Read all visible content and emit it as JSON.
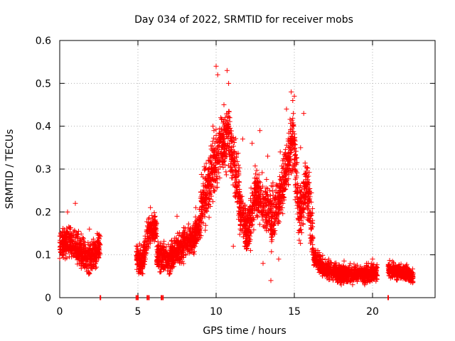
{
  "chart_data": {
    "type": "scatter",
    "title": "Day 034 of 2022, SRMTID for receiver mobs",
    "xlabel": "GPS time / hours",
    "ylabel": "SRMTID / TECUs",
    "xlim": [
      0,
      24
    ],
    "ylim": [
      0,
      0.6
    ],
    "x_ticks": [
      0,
      5,
      10,
      15,
      20
    ],
    "y_ticks": [
      0,
      0.1,
      0.2,
      0.3,
      0.4,
      0.5,
      0.6
    ],
    "x_tick_labels": [
      "0",
      "5",
      "10",
      "15",
      "20"
    ],
    "y_tick_labels": [
      "0",
      "0.1",
      "0.2",
      "0.3",
      "0.4",
      "0.5",
      "0.6"
    ],
    "grid": true,
    "marker": "+",
    "color": "#ff0000",
    "series": [
      {
        "name": "SRMTID",
        "segments": [
          {
            "x_start": 0.0,
            "x_end": 2.6,
            "profile": [
              [
                0.0,
                0.12
              ],
              [
                0.5,
                0.13
              ],
              [
                1.0,
                0.12
              ],
              [
                1.5,
                0.1
              ],
              [
                2.0,
                0.09
              ],
              [
                2.6,
                0.12
              ]
            ],
            "spread": 0.05
          },
          {
            "x_start": 4.9,
            "x_end": 6.2,
            "profile": [
              [
                4.9,
                0.1
              ],
              [
                5.3,
                0.08
              ],
              [
                5.6,
                0.14
              ],
              [
                6.0,
                0.17
              ],
              [
                6.2,
                0.16
              ]
            ],
            "spread": 0.05
          },
          {
            "x_start": 6.2,
            "x_end": 9.0,
            "profile": [
              [
                6.2,
                0.1
              ],
              [
                7.0,
                0.09
              ],
              [
                7.8,
                0.12
              ],
              [
                8.5,
                0.14
              ],
              [
                9.0,
                0.17
              ]
            ],
            "spread": 0.05
          },
          {
            "x_start": 9.0,
            "x_end": 11.5,
            "profile": [
              [
                9.0,
                0.2
              ],
              [
                9.5,
                0.26
              ],
              [
                10.0,
                0.32
              ],
              [
                10.4,
                0.36
              ],
              [
                10.8,
                0.38
              ],
              [
                11.2,
                0.3
              ],
              [
                11.5,
                0.24
              ]
            ],
            "spread": 0.1
          },
          {
            "x_start": 11.5,
            "x_end": 13.5,
            "profile": [
              [
                11.5,
                0.2
              ],
              [
                12.0,
                0.15
              ],
              [
                12.5,
                0.24
              ],
              [
                13.0,
                0.22
              ],
              [
                13.5,
                0.2
              ]
            ],
            "spread": 0.08
          },
          {
            "x_start": 13.5,
            "x_end": 16.2,
            "profile": [
              [
                13.5,
                0.18
              ],
              [
                14.0,
                0.22
              ],
              [
                14.5,
                0.3
              ],
              [
                14.9,
                0.38
              ],
              [
                15.3,
                0.2
              ],
              [
                15.8,
                0.26
              ],
              [
                16.2,
                0.14
              ]
            ],
            "spread": 0.09
          },
          {
            "x_start": 16.2,
            "x_end": 20.3,
            "profile": [
              [
                16.2,
                0.1
              ],
              [
                16.8,
                0.07
              ],
              [
                17.5,
                0.06
              ],
              [
                18.5,
                0.055
              ],
              [
                19.5,
                0.055
              ],
              [
                20.3,
                0.06
              ]
            ],
            "spread": 0.03
          },
          {
            "x_start": 21.0,
            "x_end": 22.6,
            "profile": [
              [
                21.0,
                0.065
              ],
              [
                21.8,
                0.06
              ],
              [
                22.6,
                0.05
              ]
            ],
            "spread": 0.025
          }
        ],
        "peaks": [
          [
            10.0,
            0.54
          ],
          [
            10.1,
            0.52
          ],
          [
            10.7,
            0.53
          ],
          [
            10.8,
            0.5
          ],
          [
            10.5,
            0.45
          ],
          [
            9.8,
            0.4
          ],
          [
            10.3,
            0.42
          ],
          [
            14.8,
            0.48
          ],
          [
            14.9,
            0.46
          ],
          [
            15.0,
            0.47
          ],
          [
            14.5,
            0.44
          ],
          [
            15.6,
            0.43
          ],
          [
            12.8,
            0.39
          ],
          [
            12.3,
            0.36
          ],
          [
            11.7,
            0.37
          ],
          [
            13.3,
            0.33
          ],
          [
            14.1,
            0.34
          ],
          [
            15.4,
            0.35
          ],
          [
            9.3,
            0.3
          ],
          [
            8.9,
            0.18
          ],
          [
            13.5,
            0.04
          ],
          [
            13.0,
            0.08
          ],
          [
            12.2,
            0.11
          ],
          [
            11.1,
            0.12
          ],
          [
            14.0,
            0.09
          ],
          [
            5.8,
            0.21
          ],
          [
            6.1,
            0.19
          ],
          [
            7.5,
            0.19
          ],
          [
            8.7,
            0.21
          ],
          [
            1.0,
            0.22
          ],
          [
            0.5,
            0.2
          ],
          [
            1.9,
            0.16
          ],
          [
            2.4,
            0.15
          ],
          [
            5.1,
            0.06
          ],
          [
            6.4,
            0.06
          ],
          [
            16.5,
            0.11
          ],
          [
            17.2,
            0.09
          ],
          [
            18.0,
            0.03
          ],
          [
            19.5,
            0.03
          ],
          [
            20.0,
            0.09
          ]
        ],
        "baseline_marks": [
          2.6,
          4.9,
          5.0,
          5.6,
          5.7,
          6.5,
          6.6,
          21.0
        ]
      }
    ]
  }
}
